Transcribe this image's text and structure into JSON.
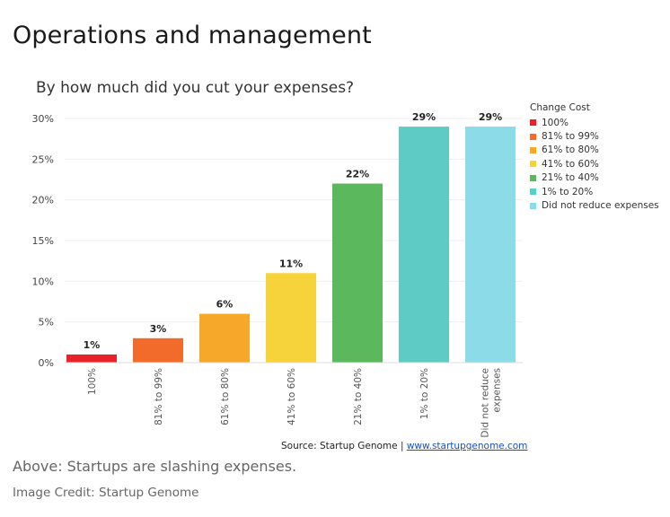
{
  "page": {
    "heading": "Operations and management",
    "caption": "Above: Startups are slashing expenses.",
    "credit": "Image Credit: Startup Genome"
  },
  "chart_data": {
    "type": "bar",
    "title": "By how much did you cut your expenses?",
    "categories": [
      "100%",
      "81% to 99%",
      "61% to 80%",
      "41% to 60%",
      "21% to 40%",
      "1% to 20%",
      "Did not reduce expenses"
    ],
    "tick_labels": [
      [
        "100%"
      ],
      [
        "81% to 99%"
      ],
      [
        "61% to 80%"
      ],
      [
        "41% to 60%"
      ],
      [
        "21% to 40%"
      ],
      [
        "1% to 20%"
      ],
      [
        "Did not reduce",
        "expenses"
      ]
    ],
    "values": [
      1,
      3,
      6,
      11,
      22,
      29,
      29
    ],
    "value_labels": [
      "1%",
      "3%",
      "6%",
      "11%",
      "22%",
      "29%",
      "29%"
    ],
    "colors": [
      "#e8212b",
      "#f36b2a",
      "#f6a82b",
      "#f6d23b",
      "#5cb85c",
      "#5fcbc5",
      "#8cdbe8"
    ],
    "ylim": [
      0,
      30
    ],
    "yticks": [
      0,
      5,
      10,
      15,
      20,
      25,
      30
    ],
    "ytick_labels": [
      "0%",
      "5%",
      "10%",
      "15%",
      "20%",
      "25%",
      "30%"
    ],
    "grid": true,
    "legend": {
      "title": "Change Cost",
      "position": "right",
      "items": [
        "100%",
        "81% to 99%",
        "61% to 80%",
        "41% to 60%",
        "21% to 40%",
        "1% to 20%",
        "Did not reduce expenses"
      ]
    },
    "source": {
      "prefix": "Source: Startup Genome  |  ",
      "link": "www.startupgenome.com"
    }
  }
}
